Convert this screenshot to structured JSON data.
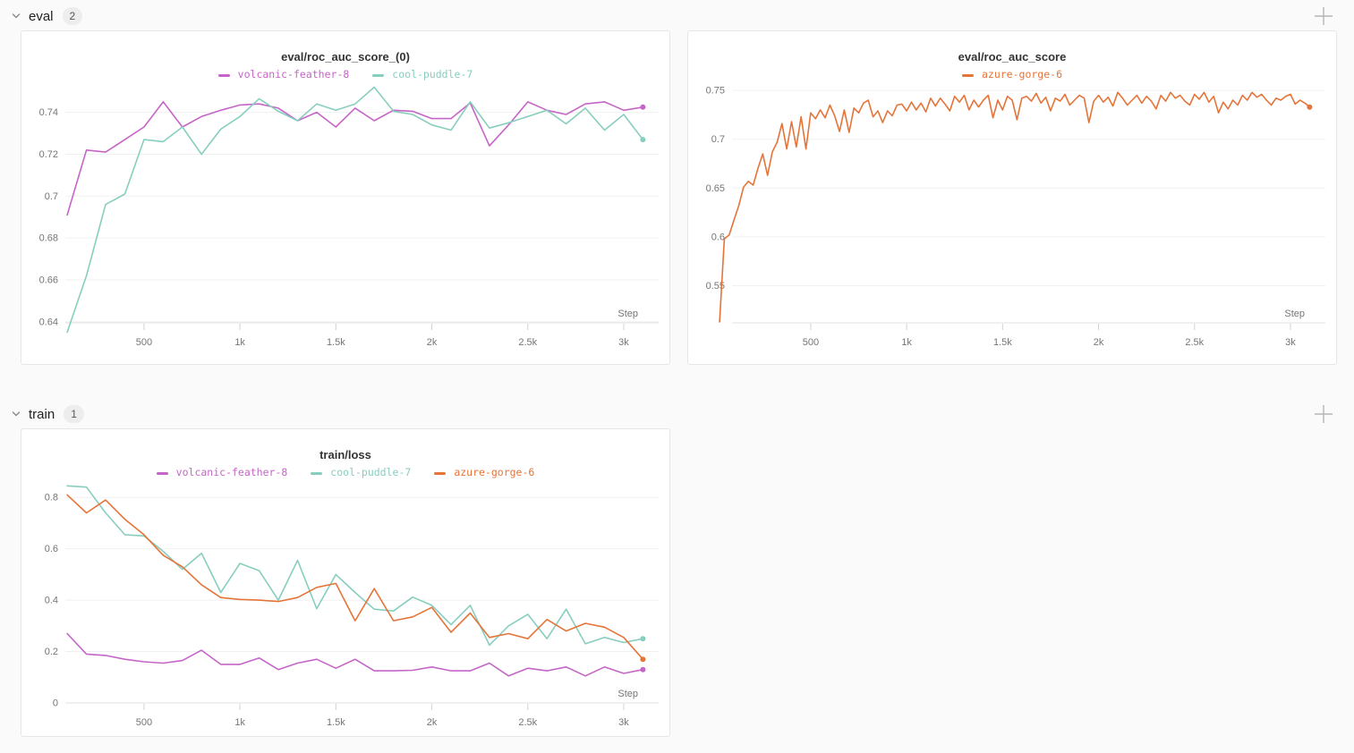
{
  "page": {
    "background": "#fafafa"
  },
  "sections": [
    {
      "name": "eval",
      "count": "2"
    },
    {
      "name": "train",
      "count": "1"
    }
  ],
  "icons": {
    "chevron": "chevron-down",
    "add_panel": "plus"
  },
  "colors": {
    "magenta": "#C565C7",
    "teal": "#87CEBF",
    "orange": "#E57439",
    "grid": "#f0f0f0",
    "axis": "#e2e2e2",
    "tick": "#d2d2d2",
    "tick_text": "#757575"
  },
  "chart_data": [
    {
      "type": "line",
      "title": "eval/roc_auc_score_(0)",
      "xlabel": "Step",
      "xlim": [
        90,
        3182
      ],
      "ylim": [
        0.6395,
        0.7535
      ],
      "x_ticks": {
        "values": [
          500,
          1000,
          1500,
          2000,
          2500,
          3000
        ],
        "labels": [
          "500",
          "1k",
          "1.5k",
          "2k",
          "2.5k",
          "3k"
        ]
      },
      "y_ticks": {
        "values": [
          0.64,
          0.66,
          0.68,
          0.7,
          0.72,
          0.74
        ],
        "labels": [
          "0.64",
          "0.66",
          "0.68",
          "0.7",
          "0.72",
          "0.74"
        ]
      },
      "series": [
        {
          "name": "volcanic-feather-8",
          "color": "#C565C7",
          "x_start": 100,
          "x_step": 100,
          "end_marker": true,
          "values": [
            0.691,
            0.722,
            0.721,
            0.727,
            0.733,
            0.745,
            0.733,
            0.738,
            0.741,
            0.7435,
            0.744,
            0.742,
            0.736,
            0.74,
            0.733,
            0.742,
            0.736,
            0.741,
            0.7405,
            0.737,
            0.737,
            0.7445,
            0.724,
            0.734,
            0.745,
            0.741,
            0.739,
            0.744,
            0.745,
            0.741,
            0.7425
          ]
        },
        {
          "name": "cool-puddle-7",
          "color": "#87CEBF",
          "x_start": 100,
          "x_step": 100,
          "end_marker": true,
          "values": [
            0.635,
            0.662,
            0.696,
            0.701,
            0.727,
            0.726,
            0.733,
            0.72,
            0.732,
            0.738,
            0.7465,
            0.7405,
            0.736,
            0.744,
            0.741,
            0.744,
            0.752,
            0.7405,
            0.739,
            0.734,
            0.7315,
            0.745,
            0.7325,
            0.735,
            0.738,
            0.741,
            0.7345,
            0.742,
            0.7315,
            0.739,
            0.727
          ]
        }
      ]
    },
    {
      "type": "line",
      "title": "eval/roc_auc_score",
      "xlabel": "Step",
      "xlim": [
        90,
        3182
      ],
      "ylim": [
        0.512,
        0.7565
      ],
      "x_ticks": {
        "values": [
          500,
          1000,
          1500,
          2000,
          2500,
          3000
        ],
        "labels": [
          "500",
          "1k",
          "1.5k",
          "2k",
          "2.5k",
          "3k"
        ]
      },
      "y_ticks": {
        "values": [
          0.55,
          0.6,
          0.65,
          0.7,
          0.75
        ],
        "labels": [
          "0.55",
          "0.6",
          "0.65",
          "0.7",
          "0.75"
        ]
      },
      "series": [
        {
          "name": "azure-gorge-6",
          "color": "#E57439",
          "x_start": 25,
          "x_step": 25,
          "end_marker": true,
          "values": [
            0.513,
            0.598,
            0.602,
            0.617,
            0.632,
            0.651,
            0.657,
            0.653,
            0.67,
            0.685,
            0.663,
            0.687,
            0.697,
            0.716,
            0.69,
            0.718,
            0.692,
            0.723,
            0.69,
            0.727,
            0.721,
            0.73,
            0.722,
            0.735,
            0.724,
            0.708,
            0.73,
            0.707,
            0.732,
            0.727,
            0.737,
            0.74,
            0.723,
            0.729,
            0.717,
            0.729,
            0.724,
            0.735,
            0.736,
            0.729,
            0.738,
            0.73,
            0.737,
            0.728,
            0.742,
            0.734,
            0.742,
            0.736,
            0.729,
            0.744,
            0.738,
            0.745,
            0.73,
            0.74,
            0.733,
            0.74,
            0.745,
            0.722,
            0.74,
            0.73,
            0.744,
            0.74,
            0.72,
            0.742,
            0.744,
            0.739,
            0.747,
            0.737,
            0.743,
            0.729,
            0.742,
            0.739,
            0.746,
            0.735,
            0.74,
            0.745,
            0.742,
            0.717,
            0.739,
            0.745,
            0.738,
            0.743,
            0.734,
            0.748,
            0.742,
            0.735,
            0.74,
            0.745,
            0.737,
            0.744,
            0.739,
            0.731,
            0.745,
            0.739,
            0.748,
            0.742,
            0.745,
            0.739,
            0.735,
            0.746,
            0.741,
            0.748,
            0.738,
            0.744,
            0.727,
            0.738,
            0.731,
            0.74,
            0.735,
            0.745,
            0.74,
            0.748,
            0.743,
            0.746,
            0.74,
            0.735,
            0.742,
            0.74,
            0.744,
            0.746,
            0.736,
            0.74,
            0.737,
            0.733
          ]
        }
      ]
    },
    {
      "type": "line",
      "title": "train/loss",
      "xlabel": "Step",
      "xlim": [
        90,
        3182
      ],
      "ylim": [
        0,
        0.86
      ],
      "x_ticks": {
        "values": [
          500,
          1000,
          1500,
          2000,
          2500,
          3000
        ],
        "labels": [
          "500",
          "1k",
          "1.5k",
          "2k",
          "2.5k",
          "3k"
        ]
      },
      "y_ticks": {
        "values": [
          0,
          0.2,
          0.4,
          0.6,
          0.8
        ],
        "labels": [
          "0",
          "0.2",
          "0.4",
          "0.6",
          "0.8"
        ]
      },
      "series": [
        {
          "name": "volcanic-feather-8",
          "color": "#C565C7",
          "x_start": 100,
          "x_step": 100,
          "end_marker": true,
          "values": [
            0.27,
            0.19,
            0.185,
            0.17,
            0.16,
            0.155,
            0.165,
            0.205,
            0.15,
            0.15,
            0.175,
            0.13,
            0.155,
            0.17,
            0.135,
            0.17,
            0.125,
            0.125,
            0.127,
            0.14,
            0.125,
            0.125,
            0.155,
            0.105,
            0.135,
            0.125,
            0.14,
            0.105,
            0.14,
            0.115,
            0.13
          ]
        },
        {
          "name": "cool-puddle-7",
          "color": "#87CEBF",
          "x_start": 100,
          "x_step": 100,
          "end_marker": true,
          "values": [
            0.845,
            0.84,
            0.74,
            0.655,
            0.65,
            0.59,
            0.52,
            0.583,
            0.43,
            0.543,
            0.515,
            0.4,
            0.555,
            0.367,
            0.5,
            0.43,
            0.365,
            0.358,
            0.412,
            0.38,
            0.305,
            0.38,
            0.225,
            0.3,
            0.345,
            0.25,
            0.365,
            0.23,
            0.255,
            0.235,
            0.25
          ]
        },
        {
          "name": "azure-gorge-6",
          "color": "#E57439",
          "x_start": 100,
          "x_step": 100,
          "end_marker": true,
          "values": [
            0.81,
            0.74,
            0.79,
            0.715,
            0.655,
            0.575,
            0.53,
            0.46,
            0.41,
            0.403,
            0.4,
            0.395,
            0.41,
            0.45,
            0.465,
            0.32,
            0.445,
            0.32,
            0.335,
            0.372,
            0.275,
            0.35,
            0.255,
            0.27,
            0.25,
            0.325,
            0.28,
            0.31,
            0.295,
            0.255,
            0.17
          ]
        }
      ]
    }
  ]
}
